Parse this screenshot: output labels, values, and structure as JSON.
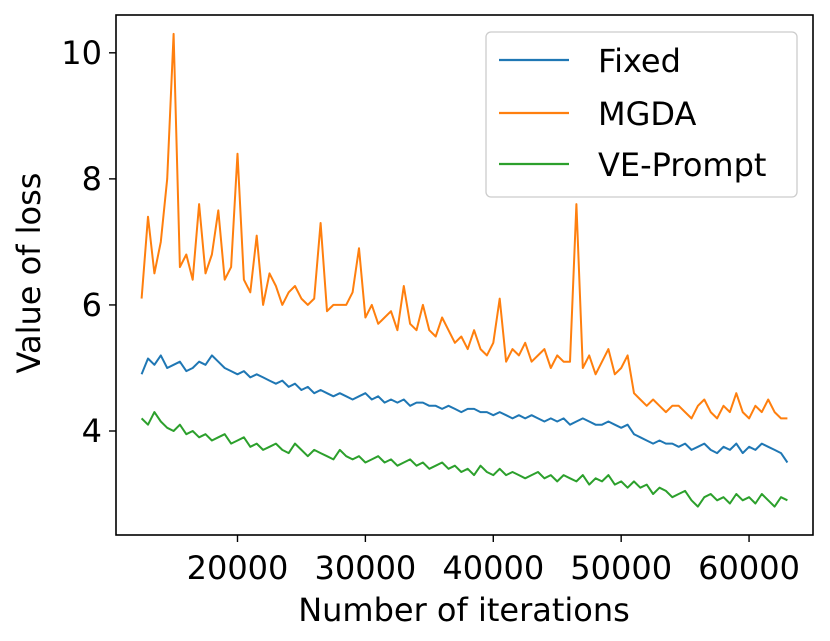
{
  "chart_data": {
    "type": "line",
    "title": "",
    "xlabel": "Number of iterations",
    "ylabel": "Value of loss",
    "xlim": [
      10500,
      65000
    ],
    "ylim": [
      2.35,
      10.6
    ],
    "xticks": [
      20000,
      30000,
      40000,
      50000,
      60000
    ],
    "xtick_labels": [
      "20000",
      "30000",
      "40000",
      "50000",
      "60000"
    ],
    "yticks": [
      4,
      6,
      8,
      10
    ],
    "ytick_labels": [
      "4",
      "6",
      "8",
      "10"
    ],
    "grid": false,
    "legend_position": "upper-right",
    "x_start": 12500,
    "x_step": 500,
    "series": [
      {
        "name": "Fixed",
        "color": "#1f77b4",
        "values": [
          4.9,
          5.15,
          5.05,
          5.2,
          5.0,
          5.05,
          5.1,
          4.95,
          5.0,
          5.1,
          5.05,
          5.2,
          5.1,
          5.0,
          4.95,
          4.9,
          4.95,
          4.85,
          4.9,
          4.85,
          4.8,
          4.75,
          4.8,
          4.7,
          4.75,
          4.65,
          4.7,
          4.6,
          4.65,
          4.6,
          4.55,
          4.6,
          4.55,
          4.5,
          4.55,
          4.6,
          4.5,
          4.55,
          4.45,
          4.5,
          4.45,
          4.5,
          4.4,
          4.45,
          4.45,
          4.4,
          4.4,
          4.35,
          4.4,
          4.35,
          4.3,
          4.35,
          4.35,
          4.3,
          4.3,
          4.25,
          4.3,
          4.25,
          4.2,
          4.25,
          4.2,
          4.25,
          4.2,
          4.15,
          4.2,
          4.15,
          4.2,
          4.1,
          4.15,
          4.2,
          4.15,
          4.1,
          4.1,
          4.15,
          4.1,
          4.05,
          4.1,
          3.95,
          3.9,
          3.85,
          3.8,
          3.85,
          3.8,
          3.8,
          3.75,
          3.8,
          3.7,
          3.75,
          3.8,
          3.7,
          3.65,
          3.75,
          3.7,
          3.8,
          3.65,
          3.75,
          3.7,
          3.8,
          3.75,
          3.7,
          3.65,
          3.5
        ]
      },
      {
        "name": "MGDA",
        "color": "#ff7f0e",
        "values": [
          6.1,
          7.4,
          6.5,
          7.0,
          8.0,
          10.3,
          6.6,
          6.8,
          6.4,
          7.6,
          6.5,
          6.8,
          7.5,
          6.4,
          6.6,
          8.4,
          6.4,
          6.2,
          7.1,
          6.0,
          6.5,
          6.3,
          6.0,
          6.2,
          6.3,
          6.1,
          6.0,
          6.1,
          7.3,
          5.9,
          6.0,
          6.0,
          6.0,
          6.2,
          6.9,
          5.8,
          6.0,
          5.7,
          5.8,
          5.9,
          5.6,
          6.3,
          5.7,
          5.6,
          6.0,
          5.6,
          5.5,
          5.8,
          5.6,
          5.4,
          5.5,
          5.3,
          5.6,
          5.3,
          5.2,
          5.4,
          6.1,
          5.1,
          5.3,
          5.2,
          5.4,
          5.1,
          5.2,
          5.3,
          5.0,
          5.2,
          5.1,
          5.1,
          7.6,
          5.0,
          5.2,
          4.9,
          5.1,
          5.3,
          4.9,
          5.0,
          5.2,
          4.6,
          4.5,
          4.4,
          4.5,
          4.4,
          4.3,
          4.4,
          4.4,
          4.3,
          4.2,
          4.4,
          4.5,
          4.3,
          4.2,
          4.4,
          4.3,
          4.6,
          4.3,
          4.2,
          4.4,
          4.3,
          4.5,
          4.3,
          4.2,
          4.2
        ]
      },
      {
        "name": "VE-Prompt",
        "color": "#2ca02c",
        "values": [
          4.2,
          4.1,
          4.3,
          4.15,
          4.05,
          4.0,
          4.1,
          3.95,
          4.0,
          3.9,
          3.95,
          3.85,
          3.9,
          3.95,
          3.8,
          3.85,
          3.9,
          3.75,
          3.8,
          3.7,
          3.75,
          3.8,
          3.7,
          3.65,
          3.8,
          3.7,
          3.6,
          3.7,
          3.65,
          3.6,
          3.55,
          3.7,
          3.6,
          3.55,
          3.6,
          3.5,
          3.55,
          3.6,
          3.5,
          3.55,
          3.45,
          3.5,
          3.55,
          3.45,
          3.5,
          3.4,
          3.45,
          3.5,
          3.4,
          3.45,
          3.35,
          3.4,
          3.3,
          3.45,
          3.35,
          3.3,
          3.4,
          3.3,
          3.35,
          3.3,
          3.25,
          3.3,
          3.35,
          3.25,
          3.3,
          3.2,
          3.3,
          3.25,
          3.2,
          3.3,
          3.15,
          3.25,
          3.2,
          3.3,
          3.15,
          3.2,
          3.1,
          3.2,
          3.1,
          3.15,
          3.0,
          3.1,
          3.05,
          2.95,
          3.0,
          3.05,
          2.9,
          2.8,
          2.95,
          3.0,
          2.9,
          2.95,
          2.85,
          3.0,
          2.9,
          2.95,
          2.85,
          3.0,
          2.9,
          2.8,
          2.95,
          2.9
        ]
      }
    ]
  }
}
